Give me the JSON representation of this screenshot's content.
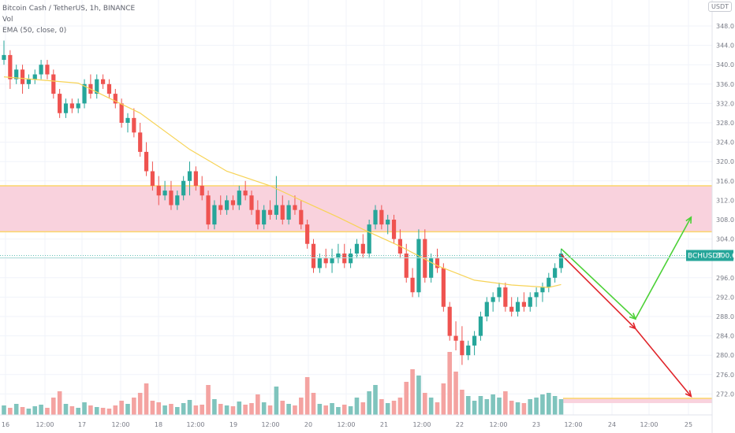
{
  "legend": {
    "symbol_line": "Bitcoin Cash / TetherUS, 1h, BINANCE",
    "vol_line": "Vol",
    "ema_line": "EMA (50, close, 0)"
  },
  "unit_badge": "USDT",
  "price_tag": {
    "label": "BCHUSDT",
    "value": "300.6"
  },
  "colors": {
    "up": "#26a69a",
    "down": "#ef5350",
    "vol_up": "#7fc4bd",
    "vol_down": "#f4a3a1",
    "ema": "#f7d356",
    "zone_fill": "#f9d2dd",
    "zone_line": "#fbd56a",
    "proj_green": "#4cd137",
    "proj_red": "#e0242a",
    "tag": "#26a69a"
  },
  "chart_data": {
    "type": "candlestick",
    "y_ticks": [
      "272.0",
      "276.0",
      "280.0",
      "284.0",
      "288.0",
      "292.0",
      "296.0",
      "300.0",
      "304.0",
      "308.0",
      "312.0",
      "316.0",
      "320.0",
      "324.0",
      "328.0",
      "332.0",
      "336.0",
      "340.0",
      "344.0",
      "348.0"
    ],
    "x_ticks": [
      "16",
      "12:00",
      "17",
      "12:00",
      "18",
      "12:00",
      "19",
      "12:00",
      "20",
      "12:00",
      "21",
      "12:00",
      "22",
      "12:00",
      "23",
      "12:00",
      "24",
      "12:00",
      "25"
    ],
    "ylim": [
      269.5,
      351.5
    ],
    "zones": [
      [
        305.5,
        315.0
      ],
      [
        270.6,
        270.6
      ]
    ],
    "last_price": 300.6,
    "candles": [
      [
        341,
        345,
        340,
        342
      ],
      [
        342,
        343,
        335,
        337
      ],
      [
        337,
        340,
        336,
        339
      ],
      [
        339,
        340,
        334,
        336
      ],
      [
        336,
        338,
        335,
        337
      ],
      [
        337,
        339,
        336,
        338
      ],
      [
        338,
        341,
        337,
        340
      ],
      [
        340,
        341,
        337,
        338
      ],
      [
        338,
        339,
        333,
        334
      ],
      [
        334,
        335,
        329,
        330
      ],
      [
        330,
        333,
        329,
        332
      ],
      [
        332,
        333,
        330,
        331
      ],
      [
        331,
        333,
        330,
        332
      ],
      [
        332,
        337,
        331,
        336
      ],
      [
        336,
        338,
        333,
        334
      ],
      [
        334,
        338,
        333,
        337
      ],
      [
        337,
        338,
        335,
        336
      ],
      [
        336,
        337,
        333,
        334
      ],
      [
        334,
        335,
        331,
        332
      ],
      [
        332,
        333,
        327,
        328
      ],
      [
        328,
        330,
        326,
        329
      ],
      [
        329,
        331,
        325,
        326
      ],
      [
        326,
        328,
        321,
        322
      ],
      [
        322,
        324,
        317,
        318
      ],
      [
        318,
        320,
        314,
        315
      ],
      [
        315,
        317,
        311,
        313
      ],
      [
        313,
        316,
        312,
        314
      ],
      [
        314,
        316,
        310,
        311
      ],
      [
        311,
        314,
        310,
        313
      ],
      [
        313,
        317,
        312,
        316
      ],
      [
        316,
        320,
        313,
        318
      ],
      [
        318,
        319,
        314,
        315
      ],
      [
        315,
        317,
        312,
        313
      ],
      [
        313,
        314,
        306,
        307
      ],
      [
        307,
        312,
        306,
        311
      ],
      [
        311,
        313,
        309,
        310
      ],
      [
        310,
        313,
        309,
        312
      ],
      [
        312,
        313,
        310,
        311
      ],
      [
        311,
        315,
        310,
        314
      ],
      [
        314,
        316,
        312,
        313
      ],
      [
        313,
        314,
        309,
        310
      ],
      [
        310,
        312,
        306,
        307
      ],
      [
        307,
        311,
        306,
        310
      ],
      [
        310,
        312,
        308,
        309
      ],
      [
        309,
        317,
        308,
        311
      ],
      [
        311,
        313,
        307,
        308
      ],
      [
        308,
        312,
        307,
        311
      ],
      [
        311,
        313,
        309,
        310
      ],
      [
        310,
        312,
        306,
        307
      ],
      [
        307,
        308,
        302,
        303
      ],
      [
        303,
        304,
        297,
        298
      ],
      [
        298,
        301,
        297,
        300
      ],
      [
        300,
        302,
        298,
        299
      ],
      [
        299,
        302,
        297,
        300
      ],
      [
        300,
        303,
        299,
        301
      ],
      [
        301,
        303,
        298,
        299
      ],
      [
        299,
        302,
        298,
        301
      ],
      [
        301,
        304,
        300,
        303
      ],
      [
        303,
        305,
        300,
        301
      ],
      [
        301,
        308,
        300,
        307
      ],
      [
        307,
        311,
        306,
        310
      ],
      [
        310,
        311,
        306,
        307
      ],
      [
        307,
        309,
        305,
        308
      ],
      [
        308,
        309,
        303,
        304
      ],
      [
        304,
        306,
        300,
        301
      ],
      [
        301,
        303,
        295,
        296
      ],
      [
        296,
        298,
        292,
        293
      ],
      [
        293,
        306,
        292,
        304
      ],
      [
        304,
        306,
        295,
        296
      ],
      [
        296,
        301,
        295,
        300
      ],
      [
        300,
        302,
        297,
        298
      ],
      [
        298,
        299,
        289,
        290
      ],
      [
        290,
        291,
        283,
        284
      ],
      [
        284,
        287,
        281,
        283
      ],
      [
        283,
        286,
        278,
        280
      ],
      [
        280,
        283,
        279,
        282
      ],
      [
        282,
        285,
        280,
        284
      ],
      [
        284,
        289,
        283,
        288
      ],
      [
        288,
        292,
        287,
        291
      ],
      [
        291,
        293,
        289,
        292
      ],
      [
        292,
        295,
        291,
        294
      ],
      [
        294,
        295,
        289,
        290
      ],
      [
        290,
        292,
        288,
        289
      ],
      [
        289,
        292,
        288,
        291
      ],
      [
        291,
        293,
        289,
        290
      ],
      [
        290,
        293,
        289,
        292
      ],
      [
        292,
        294,
        290,
        293
      ],
      [
        293,
        295,
        291,
        294
      ],
      [
        294,
        297,
        293,
        296
      ],
      [
        296,
        299,
        295,
        298
      ],
      [
        298,
        302,
        297,
        301
      ]
    ],
    "volumes": [
      12,
      9,
      14,
      10,
      8,
      11,
      13,
      9,
      22,
      30,
      14,
      11,
      9,
      16,
      12,
      10,
      9,
      8,
      12,
      18,
      14,
      22,
      28,
      40,
      18,
      16,
      12,
      14,
      10,
      15,
      19,
      12,
      13,
      38,
      20,
      14,
      12,
      11,
      17,
      13,
      15,
      26,
      16,
      12,
      36,
      18,
      14,
      12,
      22,
      48,
      28,
      14,
      12,
      15,
      10,
      13,
      11,
      22,
      16,
      30,
      38,
      20,
      15,
      18,
      22,
      42,
      58,
      50,
      28,
      22,
      16,
      40,
      80,
      55,
      32,
      24,
      18,
      24,
      20,
      26,
      22,
      30,
      18,
      16,
      15,
      20,
      22,
      26,
      28,
      24,
      20
    ],
    "ema_points": [
      [
        0,
        337.5
      ],
      [
        12,
        336.2
      ],
      [
        22,
        330.0
      ],
      [
        30,
        322.5
      ],
      [
        36,
        318.0
      ],
      [
        43,
        315.0
      ],
      [
        48,
        312.0
      ],
      [
        54,
        308.5
      ],
      [
        58,
        306.0
      ],
      [
        64,
        302.5
      ],
      [
        70,
        298.5
      ],
      [
        76,
        295.5
      ],
      [
        82,
        294.5
      ],
      [
        88,
        294.0
      ],
      [
        90,
        294.6
      ]
    ],
    "projections": [
      {
        "name": "green",
        "points": [
          [
            90,
            302.0
          ],
          [
            102,
            287.5
          ],
          [
            111,
            308.5
          ]
        ]
      },
      {
        "name": "red",
        "points": [
          [
            90,
            300.8
          ],
          [
            102,
            285.5
          ],
          [
            111,
            271.5
          ]
        ]
      }
    ]
  }
}
